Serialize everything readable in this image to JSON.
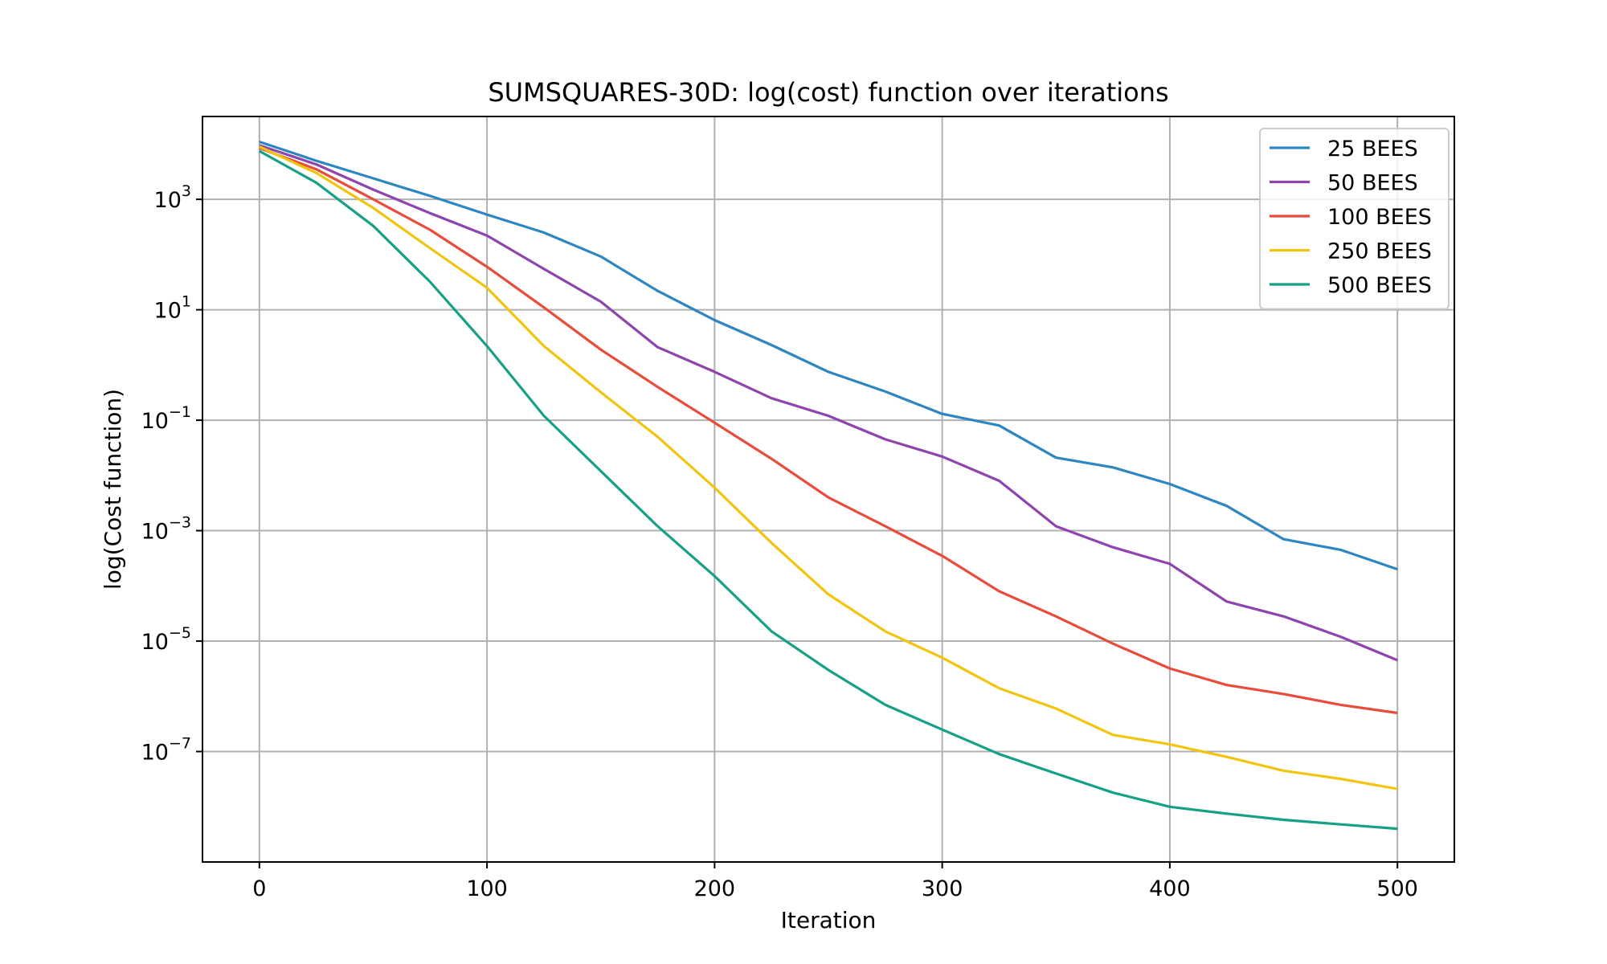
{
  "chart_data": {
    "type": "line",
    "title": "SUMSQUARES-30D: log(cost) function over iterations",
    "xlabel": "Iteration",
    "ylabel": "log(Cost function)",
    "xlim": [
      -25,
      525
    ],
    "ylim_log10": [
      -9.0,
      4.5
    ],
    "yscale": "log",
    "grid": true,
    "legend_position": "top-right",
    "x_ticks": [
      0,
      100,
      200,
      300,
      400,
      500
    ],
    "y_ticks": [
      {
        "base": "10",
        "exp": "3",
        "value": 1000
      },
      {
        "base": "10",
        "exp": "1",
        "value": 10
      },
      {
        "base": "10",
        "exp": "−1",
        "value": 0.1
      },
      {
        "base": "10",
        "exp": "−3",
        "value": 0.001
      },
      {
        "base": "10",
        "exp": "−5",
        "value": 1e-05
      },
      {
        "base": "10",
        "exp": "−7",
        "value": 1e-07
      }
    ],
    "x": [
      0,
      25,
      50,
      75,
      100,
      125,
      150,
      175,
      200,
      225,
      250,
      275,
      300,
      325,
      350,
      375,
      400,
      425,
      450,
      475,
      500
    ],
    "series": [
      {
        "name": "25 BEES",
        "color": "#2e86c1",
        "values": [
          11000,
          5000,
          2400,
          1150,
          530,
          250,
          92,
          22,
          6.5,
          2.3,
          0.75,
          0.33,
          0.13,
          0.08,
          0.021,
          0.014,
          0.007,
          0.0028,
          0.0007,
          0.00045,
          0.0002
        ]
      },
      {
        "name": "50 BEES",
        "color": "#8e44ad",
        "values": [
          9500,
          4300,
          1500,
          560,
          220,
          55,
          14,
          2.1,
          0.75,
          0.25,
          0.12,
          0.045,
          0.022,
          0.008,
          0.0012,
          0.0005,
          0.00025,
          5.2e-05,
          2.8e-05,
          1.2e-05,
          4.5e-06
        ]
      },
      {
        "name": "100 BEES",
        "color": "#e74c3c",
        "values": [
          8500,
          3500,
          1000,
          280,
          60,
          11,
          1.9,
          0.4,
          0.09,
          0.02,
          0.004,
          0.0012,
          0.00035,
          8e-05,
          2.8e-05,
          9e-06,
          3.2e-06,
          1.6e-06,
          1.1e-06,
          7e-07,
          5e-07
        ]
      },
      {
        "name": "250 BEES",
        "color": "#f1c40f",
        "values": [
          9000,
          3000,
          700,
          130,
          25,
          2.2,
          0.32,
          0.05,
          0.006,
          0.0006,
          7e-05,
          1.5e-05,
          5e-06,
          1.4e-06,
          6e-07,
          2e-07,
          1.35e-07,
          8e-08,
          4.5e-08,
          3.2e-08,
          2.1e-08
        ]
      },
      {
        "name": "500 BEES",
        "color": "#16a085",
        "values": [
          7500,
          2000,
          330,
          32,
          2.2,
          0.12,
          0.012,
          0.0012,
          0.00015,
          1.5e-05,
          3e-06,
          7e-07,
          2.5e-07,
          9e-08,
          4e-08,
          1.8e-08,
          1e-08,
          7.5e-09,
          5.8e-09,
          4.8e-09,
          4e-09
        ]
      }
    ]
  }
}
